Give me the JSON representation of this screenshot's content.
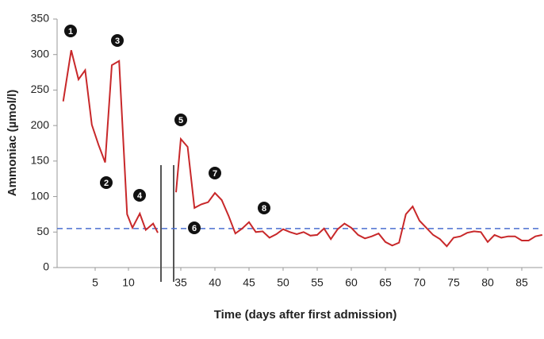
{
  "chart_data": {
    "type": "line",
    "x_label": "Time (days after first admission)",
    "y_label": "Ammoniac (µmol/l)",
    "xlim": [
      0,
      88
    ],
    "x_break": [
      15,
      34
    ],
    "ylim": [
      0,
      350
    ],
    "yticks": [
      0,
      50,
      100,
      150,
      200,
      250,
      300,
      350
    ],
    "xticks": [
      5,
      10,
      35,
      40,
      45,
      50,
      55,
      60,
      65,
      70,
      75,
      80,
      85
    ],
    "reference_line": {
      "value": 55,
      "color": "#4a6fd1"
    },
    "annotations": [
      "1",
      "2",
      "3",
      "4",
      "5",
      "6",
      "7",
      "8"
    ],
    "series": [
      {
        "name": "Ammoniac",
        "color": "#c8282a",
        "x": [
          0.2,
          1.4,
          2.5,
          3.5,
          4.5,
          5.5,
          6.5,
          7.5,
          8.6,
          9.8,
          10.6,
          11.7,
          12.6,
          13.7,
          14.4,
          null,
          34.3,
          35,
          36,
          37,
          38,
          39,
          40,
          41,
          42,
          43,
          44,
          45,
          46,
          47,
          48,
          49,
          50,
          51,
          52,
          53,
          54,
          55,
          56,
          57,
          58,
          59,
          60,
          61,
          62,
          63,
          64,
          65,
          66,
          67,
          68,
          69,
          70,
          71,
          72,
          73,
          74,
          75,
          76,
          77,
          78,
          79,
          80,
          81,
          82,
          83,
          84,
          85,
          86,
          87,
          88
        ],
        "values": [
          234,
          306,
          265,
          278,
          201,
          173,
          148,
          285,
          291,
          75,
          56,
          76,
          53,
          62,
          49,
          null,
          106,
          181,
          170,
          84,
          89,
          92,
          105,
          95,
          73,
          48,
          55,
          64,
          50,
          51,
          42,
          47,
          54,
          50,
          47,
          50,
          45,
          46,
          55,
          40,
          54,
          62,
          56,
          46,
          41,
          44,
          48,
          36,
          31,
          35,
          75,
          86,
          66,
          56,
          46,
          40,
          30,
          42,
          44,
          49,
          51,
          50,
          36,
          46,
          42,
          44,
          44,
          38,
          38,
          44,
          46
        ]
      }
    ]
  }
}
